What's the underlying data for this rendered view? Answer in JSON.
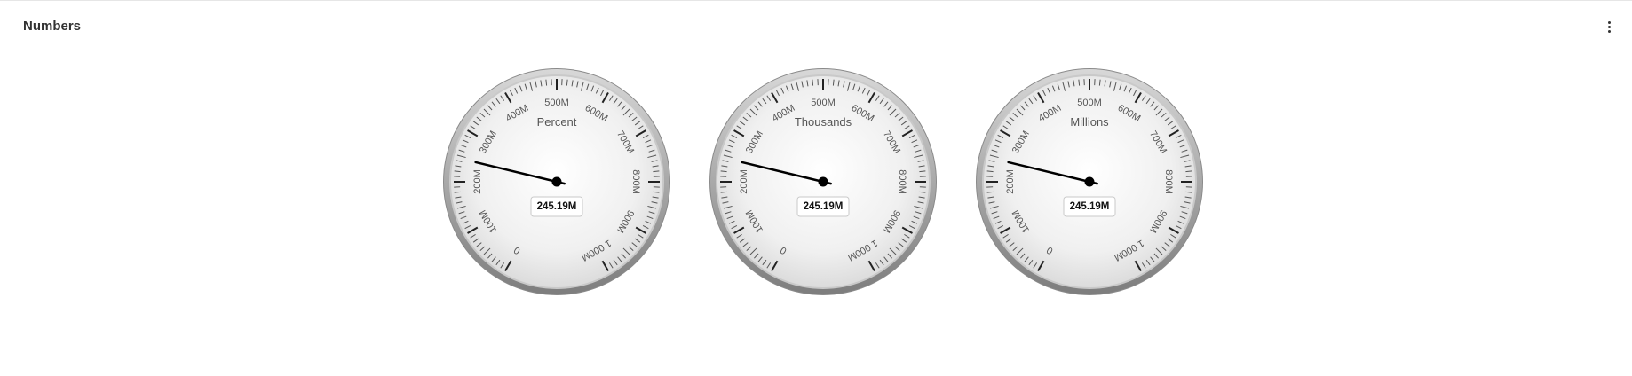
{
  "panel": {
    "title": "Numbers",
    "menu_icon": "more-vertical-icon"
  },
  "chart_data": [
    {
      "type": "gauge",
      "title": "Percent",
      "value": 245190000,
      "value_label": "245.19M",
      "min": 0,
      "max": 1000000000,
      "major_ticks": [
        0,
        100000000,
        200000000,
        300000000,
        400000000,
        500000000,
        600000000,
        700000000,
        800000000,
        900000000,
        1000000000
      ],
      "tick_labels": [
        "0",
        "100M",
        "200M",
        "300M",
        "400M",
        "500M",
        "600M",
        "700M",
        "800M",
        "900M",
        "1 000M"
      ]
    },
    {
      "type": "gauge",
      "title": "Thousands",
      "value": 245190000,
      "value_label": "245.19M",
      "min": 0,
      "max": 1000000000,
      "major_ticks": [
        0,
        100000000,
        200000000,
        300000000,
        400000000,
        500000000,
        600000000,
        700000000,
        800000000,
        900000000,
        1000000000
      ],
      "tick_labels": [
        "0",
        "100M",
        "200M",
        "300M",
        "400M",
        "500M",
        "600M",
        "700M",
        "800M",
        "900M",
        "1 000M"
      ]
    },
    {
      "type": "gauge",
      "title": "Millions",
      "value": 245190000,
      "value_label": "245.19M",
      "min": 0,
      "max": 1000000000,
      "major_ticks": [
        0,
        100000000,
        200000000,
        300000000,
        400000000,
        500000000,
        600000000,
        700000000,
        800000000,
        900000000,
        1000000000
      ],
      "tick_labels": [
        "0",
        "100M",
        "200M",
        "300M",
        "400M",
        "500M",
        "600M",
        "700M",
        "800M",
        "900M",
        "1 000M"
      ]
    }
  ]
}
